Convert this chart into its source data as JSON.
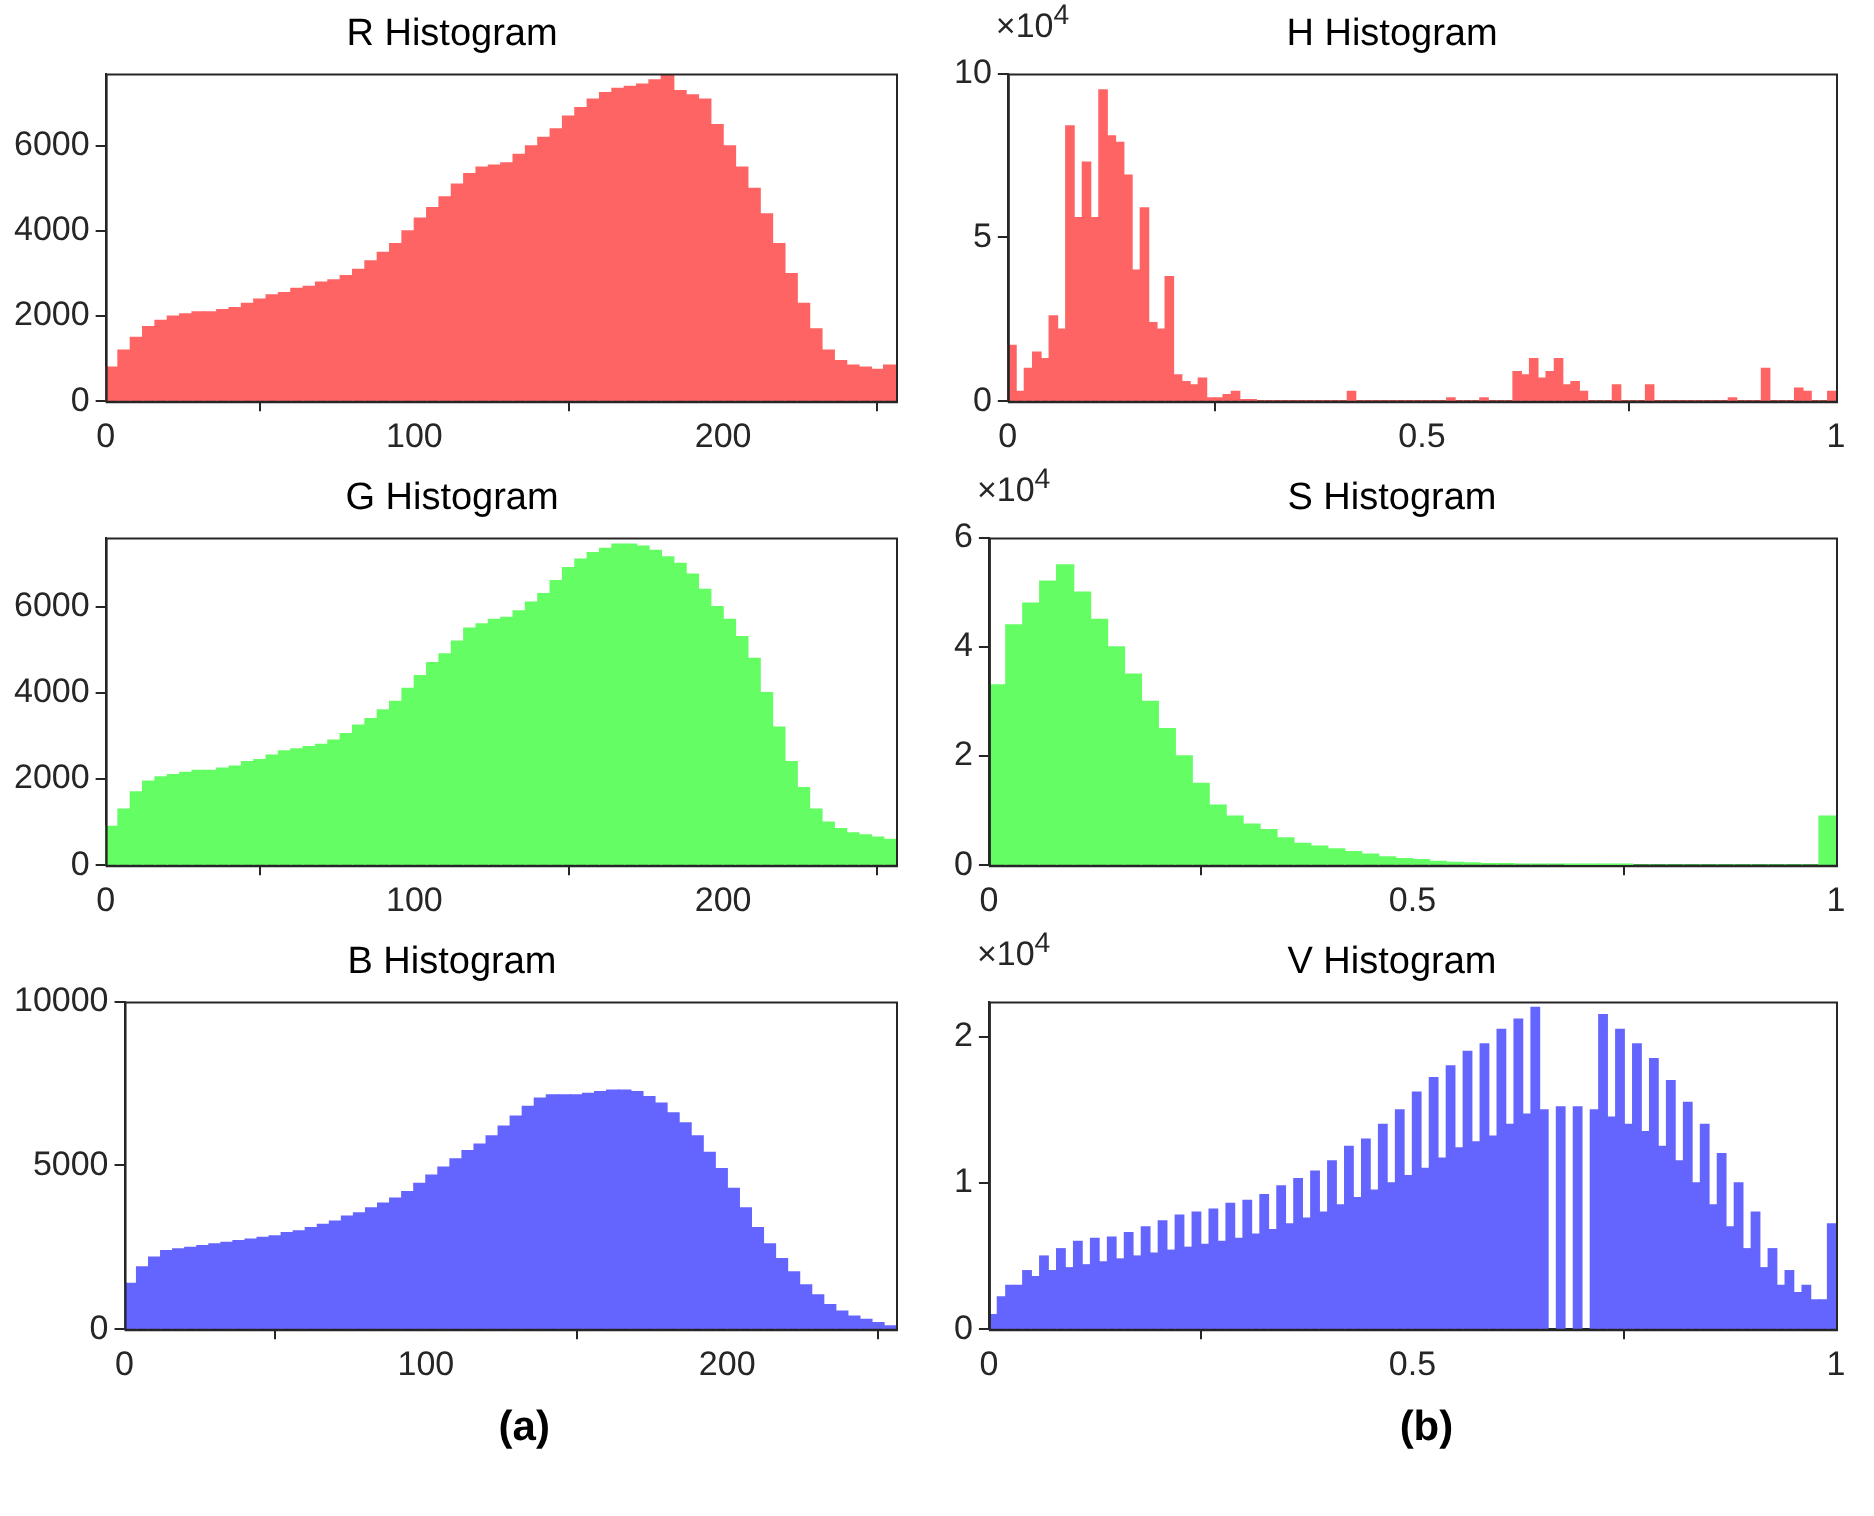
{
  "chart_data": [
    {
      "type": "histogram",
      "title": "R Histogram",
      "color": "#fe6464",
      "xlim": [
        0,
        256
      ],
      "xticks": [
        0,
        100,
        200
      ],
      "ylim": [
        0,
        7700
      ],
      "yticks": [
        0,
        2000,
        4000,
        6000
      ],
      "bins": [
        0,
        4,
        8,
        12,
        16,
        20,
        24,
        28,
        32,
        36,
        40,
        44,
        48,
        52,
        56,
        60,
        64,
        68,
        72,
        76,
        80,
        84,
        88,
        92,
        96,
        100,
        104,
        108,
        112,
        116,
        120,
        124,
        128,
        132,
        136,
        140,
        144,
        148,
        152,
        156,
        160,
        164,
        168,
        172,
        176,
        180,
        184,
        188,
        192,
        196,
        200,
        204,
        208,
        212,
        216,
        220,
        224,
        228,
        232,
        236,
        240,
        244,
        248,
        252,
        256
      ],
      "values": [
        800,
        1200,
        1500,
        1750,
        1900,
        2000,
        2050,
        2100,
        2100,
        2150,
        2200,
        2300,
        2400,
        2500,
        2550,
        2650,
        2700,
        2800,
        2850,
        2950,
        3100,
        3300,
        3500,
        3700,
        4000,
        4300,
        4550,
        4800,
        5100,
        5350,
        5500,
        5550,
        5600,
        5800,
        6000,
        6200,
        6400,
        6700,
        6900,
        7100,
        7250,
        7350,
        7400,
        7450,
        7550,
        7650,
        7300,
        7200,
        7100,
        6500,
        6000,
        5500,
        5000,
        4400,
        3700,
        3000,
        2300,
        1700,
        1200,
        950,
        850,
        800,
        750,
        850
      ]
    },
    {
      "type": "histogram",
      "title": "H Histogram",
      "color": "#fe6464",
      "xlim": [
        0,
        1
      ],
      "xticks": [
        0,
        0.5,
        1
      ],
      "ylim": [
        0,
        10
      ],
      "yticks": [
        0,
        5,
        10
      ],
      "annotations": [
        "×10$^{4}$"
      ],
      "bins": [
        0,
        0.01,
        0.02,
        0.03,
        0.04,
        0.05,
        0.06,
        0.07,
        0.08,
        0.09,
        0.1,
        0.11,
        0.12,
        0.13,
        0.14,
        0.15,
        0.16,
        0.17,
        0.18,
        0.19,
        0.2,
        0.21,
        0.22,
        0.23,
        0.24,
        0.25,
        0.26,
        0.27,
        0.28,
        0.29,
        0.3,
        0.31,
        0.32,
        0.33,
        0.34,
        0.35,
        0.36,
        0.37,
        0.38,
        0.39,
        0.4,
        0.41,
        0.42,
        0.43,
        0.44,
        0.45,
        0.46,
        0.47,
        0.48,
        0.49,
        0.5,
        0.51,
        0.52,
        0.53,
        0.54,
        0.55,
        0.56,
        0.57,
        0.58,
        0.59,
        0.6,
        0.61,
        0.62,
        0.63,
        0.64,
        0.65,
        0.66,
        0.67,
        0.68,
        0.69,
        0.7,
        0.71,
        0.72,
        0.73,
        0.74,
        0.75,
        0.76,
        0.77,
        0.78,
        0.79,
        0.8,
        0.81,
        0.82,
        0.83,
        0.84,
        0.85,
        0.86,
        0.87,
        0.88,
        0.89,
        0.9,
        0.91,
        0.92,
        0.93,
        0.94,
        0.95,
        0.96,
        0.97,
        0.98,
        0.99,
        1
      ],
      "values": [
        1.7,
        0.3,
        1.0,
        1.5,
        1.3,
        2.6,
        2.2,
        8.4,
        5.6,
        7.3,
        5.6,
        9.5,
        8.1,
        7.9,
        6.9,
        4.0,
        5.9,
        2.4,
        2.2,
        3.8,
        0.8,
        0.6,
        0.5,
        0.7,
        0.1,
        0.1,
        0.2,
        0.3,
        0.05,
        0.05,
        0,
        0,
        0,
        0,
        0,
        0,
        0,
        0,
        0,
        0,
        0,
        0.3,
        0,
        0,
        0,
        0,
        0,
        0,
        0,
        0,
        0,
        0,
        0,
        0.1,
        0,
        0,
        0,
        0.1,
        0,
        0,
        0,
        0.9,
        0.8,
        1.3,
        0.7,
        0.9,
        1.3,
        0.5,
        0.6,
        0.3,
        0,
        0,
        0,
        0.5,
        0,
        0,
        0,
        0.5,
        0,
        0,
        0,
        0,
        0,
        0,
        0,
        0,
        0,
        0.1,
        0,
        0,
        0,
        1.0,
        0,
        0,
        0,
        0.4,
        0.3,
        0,
        0,
        0.3
      ]
    },
    {
      "type": "histogram",
      "title": "G Histogram",
      "color": "#64fe64",
      "xlim": [
        0,
        256
      ],
      "xticks": [
        0,
        100,
        200
      ],
      "ylim": [
        0,
        7600
      ],
      "yticks": [
        0,
        2000,
        4000,
        6000
      ],
      "bins": [
        0,
        4,
        8,
        12,
        16,
        20,
        24,
        28,
        32,
        36,
        40,
        44,
        48,
        52,
        56,
        60,
        64,
        68,
        72,
        76,
        80,
        84,
        88,
        92,
        96,
        100,
        104,
        108,
        112,
        116,
        120,
        124,
        128,
        132,
        136,
        140,
        144,
        148,
        152,
        156,
        160,
        164,
        168,
        172,
        176,
        180,
        184,
        188,
        192,
        196,
        200,
        204,
        208,
        212,
        216,
        220,
        224,
        228,
        232,
        236,
        240,
        244,
        248,
        252,
        256
      ],
      "values": [
        900,
        1300,
        1700,
        1950,
        2050,
        2100,
        2150,
        2200,
        2200,
        2250,
        2300,
        2400,
        2450,
        2550,
        2650,
        2700,
        2750,
        2800,
        2900,
        3050,
        3250,
        3400,
        3600,
        3800,
        4100,
        4400,
        4700,
        4900,
        5200,
        5500,
        5600,
        5700,
        5750,
        5900,
        6100,
        6300,
        6600,
        6900,
        7100,
        7250,
        7350,
        7450,
        7450,
        7400,
        7300,
        7150,
        7000,
        6750,
        6400,
        6000,
        5700,
        5300,
        4800,
        4000,
        3200,
        2400,
        1800,
        1300,
        1000,
        850,
        750,
        700,
        650,
        600
      ]
    },
    {
      "type": "histogram",
      "title": "S Histogram",
      "color": "#64fe64",
      "xlim": [
        0,
        1
      ],
      "xticks": [
        0,
        0.5,
        1
      ],
      "ylim": [
        0,
        6
      ],
      "yticks": [
        0,
        2,
        4,
        6
      ],
      "annotations": [
        "×10$^{4}$"
      ],
      "bins": [
        0,
        0.02,
        0.04,
        0.06,
        0.08,
        0.1,
        0.12,
        0.14,
        0.16,
        0.18,
        0.2,
        0.22,
        0.24,
        0.26,
        0.28,
        0.3,
        0.32,
        0.34,
        0.36,
        0.38,
        0.4,
        0.42,
        0.44,
        0.46,
        0.48,
        0.5,
        0.52,
        0.54,
        0.56,
        0.58,
        0.6,
        0.62,
        0.64,
        0.66,
        0.68,
        0.7,
        0.72,
        0.74,
        0.76,
        0.78,
        0.8,
        0.82,
        0.84,
        0.86,
        0.88,
        0.9,
        0.92,
        0.94,
        0.96,
        0.98,
        1
      ],
      "values": [
        3.3,
        4.4,
        4.8,
        5.2,
        5.5,
        5.0,
        4.5,
        4.0,
        3.5,
        3.0,
        2.5,
        2.0,
        1.5,
        1.1,
        0.9,
        0.75,
        0.65,
        0.5,
        0.4,
        0.35,
        0.3,
        0.25,
        0.2,
        0.15,
        0.12,
        0.1,
        0.07,
        0.05,
        0.04,
        0.03,
        0.03,
        0.02,
        0.02,
        0.02,
        0.01,
        0.01,
        0.01,
        0.01,
        0,
        0,
        0,
        0,
        0,
        0,
        0,
        0,
        0,
        0,
        0,
        0.9
      ]
    },
    {
      "type": "histogram",
      "title": "B Histogram",
      "color": "#6464fe",
      "xlim": [
        0,
        256
      ],
      "xticks": [
        0,
        100,
        200
      ],
      "ylim": [
        0,
        10000
      ],
      "yticks": [
        0,
        5000,
        10000
      ],
      "annotations": [
        "(a)"
      ],
      "bins": [
        0,
        4,
        8,
        12,
        16,
        20,
        24,
        28,
        32,
        36,
        40,
        44,
        48,
        52,
        56,
        60,
        64,
        68,
        72,
        76,
        80,
        84,
        88,
        92,
        96,
        100,
        104,
        108,
        112,
        116,
        120,
        124,
        128,
        132,
        136,
        140,
        144,
        148,
        152,
        156,
        160,
        164,
        168,
        172,
        176,
        180,
        184,
        188,
        192,
        196,
        200,
        204,
        208,
        212,
        216,
        220,
        224,
        228,
        232,
        236,
        240,
        244,
        248,
        252,
        256
      ],
      "values": [
        1400,
        1900,
        2200,
        2400,
        2450,
        2500,
        2550,
        2600,
        2650,
        2700,
        2750,
        2800,
        2850,
        2950,
        3000,
        3100,
        3200,
        3300,
        3450,
        3550,
        3700,
        3850,
        4000,
        4200,
        4450,
        4700,
        4950,
        5200,
        5450,
        5650,
        5900,
        6200,
        6500,
        6800,
        7050,
        7150,
        7150,
        7150,
        7200,
        7250,
        7300,
        7300,
        7250,
        7100,
        6900,
        6600,
        6300,
        5900,
        5400,
        4900,
        4300,
        3700,
        3100,
        2600,
        2150,
        1750,
        1350,
        1050,
        750,
        550,
        400,
        300,
        200,
        100
      ]
    },
    {
      "type": "histogram",
      "title": "V Histogram",
      "color": "#6464fe",
      "xlim": [
        0,
        1
      ],
      "xticks": [
        0,
        0.5,
        1
      ],
      "ylim": [
        0,
        2.24
      ],
      "yticks": [
        0,
        1,
        2
      ],
      "annotations": [
        "×10$^{4}$",
        "(b)"
      ],
      "bins": [
        0,
        0.01,
        0.02,
        0.03,
        0.04,
        0.05,
        0.06,
        0.07,
        0.08,
        0.09,
        0.1,
        0.11,
        0.12,
        0.13,
        0.14,
        0.15,
        0.16,
        0.17,
        0.18,
        0.19,
        0.2,
        0.21,
        0.22,
        0.23,
        0.24,
        0.25,
        0.26,
        0.27,
        0.28,
        0.29,
        0.3,
        0.31,
        0.32,
        0.33,
        0.34,
        0.35,
        0.36,
        0.37,
        0.38,
        0.39,
        0.4,
        0.41,
        0.42,
        0.43,
        0.44,
        0.45,
        0.46,
        0.47,
        0.48,
        0.49,
        0.5,
        0.51,
        0.52,
        0.53,
        0.54,
        0.55,
        0.56,
        0.57,
        0.58,
        0.59,
        0.6,
        0.61,
        0.62,
        0.63,
        0.64,
        0.65,
        0.66,
        0.67,
        0.68,
        0.69,
        0.7,
        0.71,
        0.72,
        0.73,
        0.74,
        0.75,
        0.76,
        0.77,
        0.78,
        0.79,
        0.8,
        0.81,
        0.82,
        0.83,
        0.84,
        0.85,
        0.86,
        0.87,
        0.88,
        0.89,
        0.9,
        0.91,
        0.92,
        0.93,
        0.94,
        0.95,
        0.96,
        0.97,
        0.98,
        0.99,
        1
      ],
      "values": [
        0.1,
        0.22,
        0.3,
        0.3,
        0.4,
        0.36,
        0.5,
        0.4,
        0.55,
        0.42,
        0.6,
        0.44,
        0.62,
        0.46,
        0.63,
        0.48,
        0.66,
        0.5,
        0.7,
        0.52,
        0.74,
        0.54,
        0.78,
        0.56,
        0.8,
        0.58,
        0.82,
        0.6,
        0.86,
        0.62,
        0.88,
        0.65,
        0.92,
        0.68,
        0.98,
        0.72,
        1.03,
        0.76,
        1.08,
        0.8,
        1.15,
        0.85,
        1.25,
        0.9,
        1.3,
        0.95,
        1.4,
        1.0,
        1.5,
        1.05,
        1.62,
        1.1,
        1.72,
        1.17,
        1.8,
        1.24,
        1.9,
        1.28,
        1.95,
        1.32,
        2.05,
        1.4,
        2.12,
        1.47,
        2.2,
        1.5,
        null,
        1.52,
        null,
        1.52,
        null,
        1.5,
        2.15,
        1.45,
        2.05,
        1.4,
        1.95,
        1.35,
        1.85,
        1.25,
        1.7,
        1.15,
        1.55,
        1.0,
        1.4,
        0.85,
        1.2,
        0.7,
        1.0,
        0.55,
        0.8,
        0.42,
        0.55,
        0.3,
        0.4,
        0.25,
        0.3,
        0.2,
        0.2,
        0.72
      ]
    }
  ]
}
